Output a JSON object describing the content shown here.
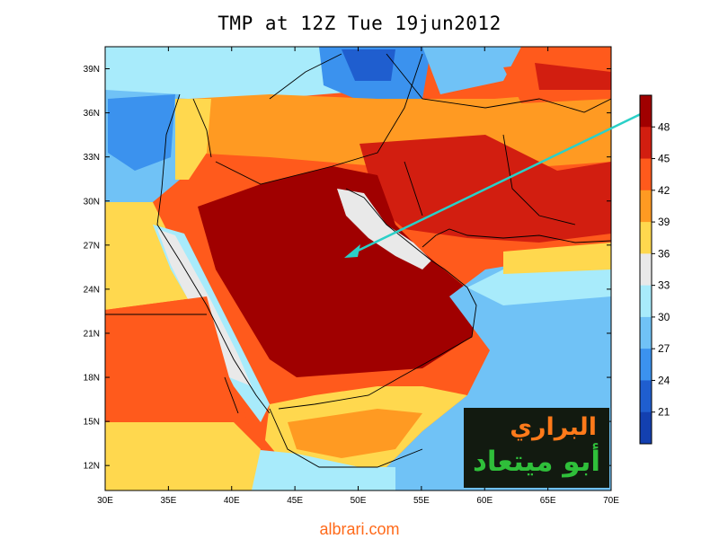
{
  "title": "TMP at 12Z Tue 19jun2012",
  "lat_labels": [
    "39N",
    "36N",
    "33N",
    "30N",
    "27N",
    "24N",
    "21N",
    "18N",
    "15N",
    "12N"
  ],
  "lon_labels": [
    "30E",
    "35E",
    "40E",
    "45E",
    "50E",
    "55E",
    "60E",
    "65E",
    "70E"
  ],
  "colorbar": {
    "labels": [
      "48",
      "45",
      "42",
      "39",
      "36",
      "33",
      "30",
      "27",
      "24",
      "21"
    ],
    "colors": [
      "#a00000",
      "#d21e10",
      "#ff5a1c",
      "#ff9a22",
      "#ffd84e",
      "#e9e9e9",
      "#a8ebfb",
      "#70c2f6",
      "#3b92ee",
      "#1f5ecf",
      "#1340b0"
    ]
  },
  "logo": {
    "line1": "البراري",
    "line2": "أبو ميتعاد"
  },
  "footer": "albrari.com"
}
